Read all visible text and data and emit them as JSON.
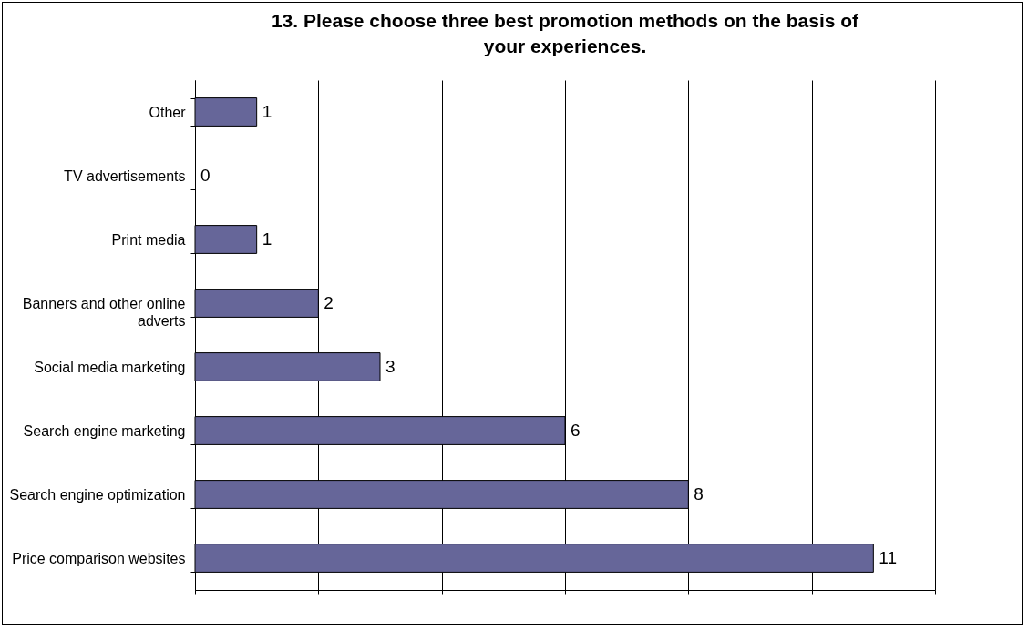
{
  "chart_data": {
    "type": "bar",
    "orientation": "horizontal",
    "title": "13. Please choose three best promotion methods on the basis of your experiences.",
    "categories": [
      "Other",
      "TV advertisements",
      "Print media",
      "Banners and other online adverts",
      "Social media marketing",
      "Search engine marketing",
      "Search engine optimization",
      "Price comparison websites"
    ],
    "values": [
      1,
      0,
      1,
      2,
      3,
      6,
      8,
      11
    ],
    "color": "#666699",
    "xlim": [
      0,
      12
    ],
    "xticks": [
      {
        "value": 0,
        "label": null
      },
      {
        "value": 2,
        "label": null
      },
      {
        "value": 4,
        "label": null
      },
      {
        "value": 6,
        "label": null
      },
      {
        "value": 8,
        "label": null
      },
      {
        "value": 10,
        "label": null
      },
      {
        "value": 12,
        "label": null
      }
    ],
    "grid": "x",
    "tick_labels": "y",
    "data_labels": true
  }
}
